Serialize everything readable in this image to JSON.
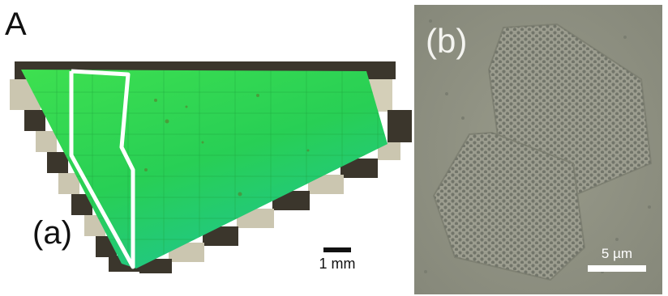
{
  "figure": {
    "panel_letter": "A",
    "left": {
      "label": "(a)",
      "scale_bar": "1 mm",
      "colors": {
        "sample": "#2fd04a",
        "outline": "#ffffff",
        "tile_edge": "#3b362c"
      }
    },
    "right": {
      "label": "(b)",
      "scale_bar": "5 µm",
      "colors": {
        "background": "#8e8f7f",
        "crystal": "#9c9d8f",
        "dot": "#72756a"
      }
    }
  }
}
